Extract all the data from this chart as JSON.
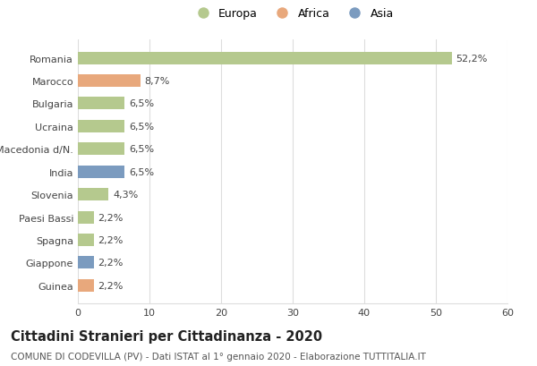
{
  "categories": [
    "Romania",
    "Marocco",
    "Bulgaria",
    "Ucraina",
    "Macedonia d/N.",
    "India",
    "Slovenia",
    "Paesi Bassi",
    "Spagna",
    "Giappone",
    "Guinea"
  ],
  "values": [
    52.2,
    8.7,
    6.5,
    6.5,
    6.5,
    6.5,
    4.3,
    2.2,
    2.2,
    2.2,
    2.2
  ],
  "labels": [
    "52,2%",
    "8,7%",
    "6,5%",
    "6,5%",
    "6,5%",
    "6,5%",
    "4,3%",
    "2,2%",
    "2,2%",
    "2,2%",
    "2,2%"
  ],
  "colors": [
    "#b5c98e",
    "#e8a87c",
    "#b5c98e",
    "#b5c98e",
    "#b5c98e",
    "#7b9bbf",
    "#b5c98e",
    "#b5c98e",
    "#b5c98e",
    "#7b9bbf",
    "#e8a87c"
  ],
  "legend_labels": [
    "Europa",
    "Africa",
    "Asia"
  ],
  "legend_colors": [
    "#b5c98e",
    "#e8a87c",
    "#7b9bbf"
  ],
  "xlim": [
    0,
    60
  ],
  "xticks": [
    0,
    10,
    20,
    30,
    40,
    50,
    60
  ],
  "title": "Cittadini Stranieri per Cittadinanza - 2020",
  "subtitle": "COMUNE DI CODEVILLA (PV) - Dati ISTAT al 1° gennaio 2020 - Elaborazione TUTTITALIA.IT",
  "background_color": "#ffffff",
  "grid_color": "#dddddd",
  "bar_height": 0.55,
  "title_fontsize": 10.5,
  "subtitle_fontsize": 7.5,
  "label_fontsize": 8,
  "tick_fontsize": 8,
  "legend_fontsize": 9
}
